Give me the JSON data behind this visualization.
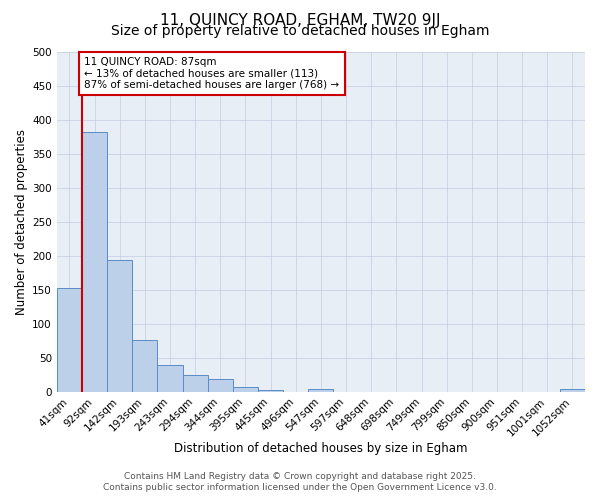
{
  "title_line1": "11, QUINCY ROAD, EGHAM, TW20 9JJ",
  "title_line2": "Size of property relative to detached houses in Egham",
  "xlabel": "Distribution of detached houses by size in Egham",
  "ylabel": "Number of detached properties",
  "bar_labels": [
    "41sqm",
    "92sqm",
    "142sqm",
    "193sqm",
    "243sqm",
    "294sqm",
    "344sqm",
    "395sqm",
    "445sqm",
    "496sqm",
    "547sqm",
    "597sqm",
    "648sqm",
    "698sqm",
    "749sqm",
    "799sqm",
    "850sqm",
    "900sqm",
    "951sqm",
    "1001sqm",
    "1052sqm"
  ],
  "bar_values": [
    152,
    382,
    193,
    76,
    39,
    25,
    18,
    6,
    2,
    0,
    4,
    0,
    0,
    0,
    0,
    0,
    0,
    0,
    0,
    0,
    4
  ],
  "bar_color": "#bdd0e9",
  "bar_edge_color": "#5b8cc8",
  "annotation_text": "11 QUINCY ROAD: 87sqm\n← 13% of detached houses are smaller (113)\n87% of semi-detached houses are larger (768) →",
  "annotation_box_color": "#ffffff",
  "annotation_box_edge": "#cc0000",
  "vline_color": "#cc0000",
  "ylim": [
    0,
    500
  ],
  "yticks": [
    0,
    50,
    100,
    150,
    200,
    250,
    300,
    350,
    400,
    450,
    500
  ],
  "background_color": "#e8eef6",
  "footer_text": "Contains HM Land Registry data © Crown copyright and database right 2025.\nContains public sector information licensed under the Open Government Licence v3.0.",
  "title_fontsize": 11,
  "subtitle_fontsize": 10,
  "axis_label_fontsize": 8.5,
  "tick_fontsize": 7.5,
  "annotation_fontsize": 7.5,
  "footer_fontsize": 6.5
}
